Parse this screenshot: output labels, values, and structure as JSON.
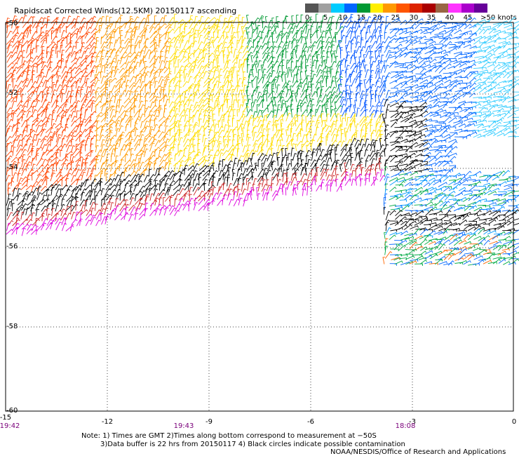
{
  "title": "Rapidscat Corrected Winds(12.5KM) 20150117 ascending",
  "legend": {
    "labels": [
      "0",
      "5",
      "10",
      "15",
      "20",
      "25",
      "30",
      "35",
      "40",
      "45",
      ">50 knots"
    ],
    "colors": [
      "#555555",
      "#a0a0a0",
      "#00ccff",
      "#0066ff",
      "#009933",
      "#ffee00",
      "#ff9900",
      "#ff5500",
      "#dd2200",
      "#aa0000",
      "#996644",
      "#ff33ff",
      "#aa00cc",
      "#660099"
    ]
  },
  "axes": {
    "y_labels": [
      "-50",
      "-52",
      "-54",
      "-56",
      "-58",
      "-60"
    ],
    "x_labels": [
      "-15",
      "-12",
      "-9",
      "-6",
      "-3",
      "0"
    ],
    "time_labels": [
      "19:42",
      "19:43",
      "18:08"
    ]
  },
  "notes": {
    "line1": "Note: 1) Times are GMT 2)Times along bottom correspond to measurement at −50S",
    "line2": "3)Data buffer is 22 hrs from 20150117 4) Black circles indicate possible contamination",
    "line3": "NOAA/NESDIS/Office of Research and Applications"
  }
}
